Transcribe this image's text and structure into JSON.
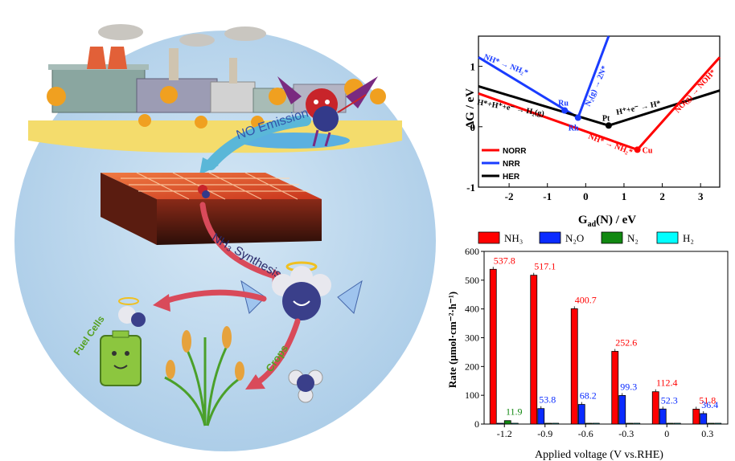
{
  "illustration": {
    "labels": {
      "no_emission": "NO Emission",
      "nh3_synthesis": "NH₃ Synthesis",
      "fuel_cells": "Fuel Cells",
      "crops": "Crops"
    },
    "colors": {
      "sky_circle": "#bcd8ee",
      "ground": "#f4dc6c",
      "arrow_red": "#d94a5a",
      "arrow_blue": "#5ab7d8",
      "catalyst": "#e0522b"
    }
  },
  "volcano_plot": {
    "xlabel": "G",
    "xlabel_sub": "ad",
    "xlabel_rest": "(N) / eV",
    "ylabel": "ΔG / eV",
    "xlim": [
      -2.8,
      3.5
    ],
    "ylim": [
      -1,
      1.5
    ],
    "xticks": [
      "-2",
      "-1",
      "0",
      "1",
      "2",
      "3"
    ],
    "yticks": [
      "-1",
      "0",
      "1"
    ],
    "legend": [
      "NORR",
      "NRR",
      "HER"
    ],
    "series_colors": {
      "NORR": "#ff0000",
      "NRR": "#1a3cff",
      "HER": "#000000"
    },
    "series": [
      {
        "name": "NRR",
        "x": [
          -2.8,
          -0.2,
          0.6
        ],
        "y": [
          1.15,
          0.15,
          1.5
        ]
      },
      {
        "name": "HER",
        "x": [
          -2.8,
          0.6,
          3.5
        ],
        "y": [
          0.67,
          0.02,
          0.6
        ]
      },
      {
        "name": "NORR",
        "x": [
          -2.8,
          1.35,
          3.5
        ],
        "y": [
          0.55,
          -0.38,
          1.15
        ]
      }
    ],
    "points": [
      {
        "label": "Ru",
        "x": -0.55,
        "y": 0.27,
        "color": "#1a3cff"
      },
      {
        "label": "Rh",
        "x": -0.2,
        "y": 0.15,
        "color": "#1a3cff"
      },
      {
        "label": "Pt",
        "x": 0.6,
        "y": 0.02,
        "color": "#000000"
      },
      {
        "label": "Cu",
        "x": 1.35,
        "y": -0.38,
        "color": "#ff0000"
      }
    ],
    "annotations": {
      "nrr_left": "NH* → NH₂*",
      "nrr_right": "N₂(g) → 2N*",
      "her_left": "H*+H⁺+e⁻ → H₂(g)",
      "her_right": "H⁺+e⁻ → H*",
      "norr_left": "NH* → NH₂*",
      "norr_right": "NO(g) → NOH*"
    }
  },
  "chart_data": {
    "type": "bar",
    "categories": [
      "-1.2",
      "-0.9",
      "-0.6",
      "-0.3",
      "0",
      "0.3"
    ],
    "xlabel": "Applied voltage (V vs.RHE)",
    "ylabel": "Rate (μmol·cm⁻²·h⁻¹)",
    "ylim": [
      0,
      600
    ],
    "yticks": [
      "0",
      "100",
      "200",
      "300",
      "400",
      "500",
      "600"
    ],
    "legend": [
      "NH₃",
      "N₂O",
      "N₂",
      "H₂"
    ],
    "legend_position": "top",
    "series": [
      {
        "name": "NH₃",
        "color": "#ff0000",
        "values": [
          537.8,
          517.1,
          400.7,
          252.6,
          112.4,
          51.8
        ],
        "labels": [
          "537.8",
          "517.1",
          "400.7",
          "252.6",
          "112.4",
          "51.8"
        ]
      },
      {
        "name": "N₂O",
        "color": "#0a2bff",
        "values": [
          0,
          53.8,
          68.2,
          99.3,
          52.3,
          36.4
        ],
        "labels": [
          "",
          "53.8",
          "68.2",
          "99.3",
          "52.3",
          "36.4"
        ]
      },
      {
        "name": "N₂",
        "color": "#118811",
        "values": [
          11.9,
          0,
          0,
          0,
          0,
          0
        ],
        "labels": [
          "11.9",
          "",
          "",
          "",
          "",
          ""
        ]
      },
      {
        "name": "H₂",
        "color": "#00ffff",
        "values": [
          0,
          0,
          0,
          0,
          0,
          0
        ],
        "labels": [
          "",
          "",
          "",
          "",
          "",
          ""
        ]
      }
    ]
  }
}
